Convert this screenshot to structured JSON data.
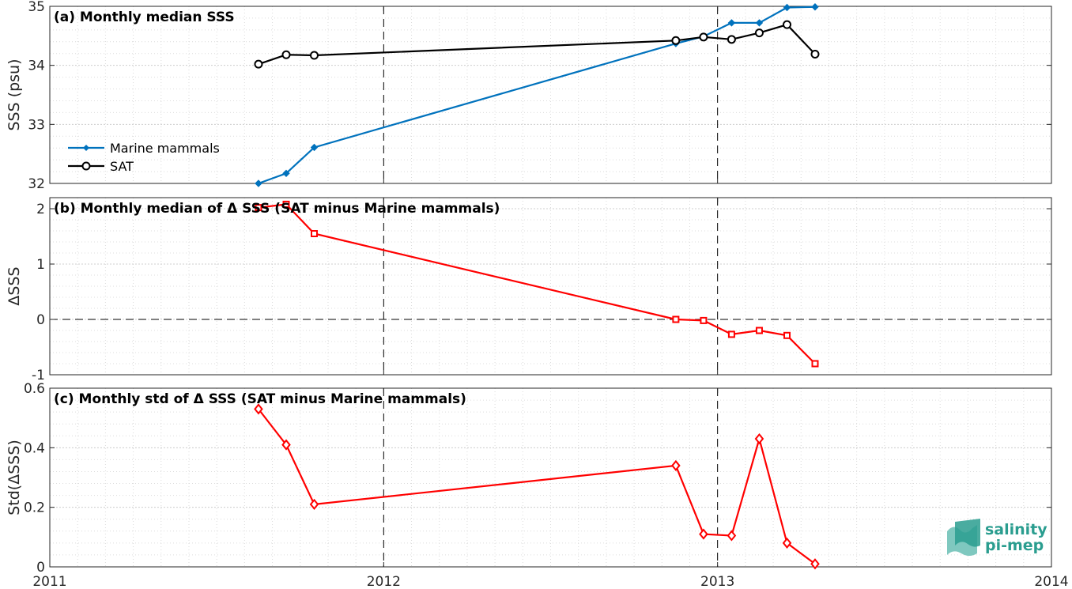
{
  "chart_data": [
    {
      "type": "line",
      "title": "(a) Monthly median SSS",
      "ylabel": "SSS (psu)",
      "xlim": [
        2011,
        2014
      ],
      "ylim": [
        32,
        35
      ],
      "yticks": [
        "32",
        "33",
        "34",
        "35"
      ],
      "series": [
        {
          "name": "Marine mammals",
          "color": "#0072bd",
          "marker": "diamond-filled",
          "x": [
            2011.625,
            2011.708,
            2011.792,
            2012.875,
            2012.958,
            2013.042,
            2013.125,
            2013.208,
            2013.292
          ],
          "values": [
            32.0,
            32.17,
            32.61,
            34.37,
            34.49,
            34.72,
            34.72,
            34.98,
            34.99
          ]
        },
        {
          "name": "SAT",
          "color": "#000000",
          "marker": "circle",
          "x": [
            2011.625,
            2011.708,
            2011.792,
            2012.875,
            2012.958,
            2013.042,
            2013.125,
            2013.208,
            2013.292
          ],
          "values": [
            34.02,
            34.18,
            34.17,
            34.42,
            34.48,
            34.44,
            34.55,
            34.69,
            34.19
          ]
        }
      ],
      "legend_position": "bottom-left"
    },
    {
      "type": "line",
      "title": "(b) Monthly median of Δ SSS (SAT minus Marine mammals)",
      "ylabel": "ΔSSS",
      "xlim": [
        2011,
        2014
      ],
      "ylim": [
        -1,
        2.2
      ],
      "yticks": [
        "-1",
        "0",
        "1",
        "2"
      ],
      "series": [
        {
          "color": "#ff0000",
          "marker": "square",
          "x": [
            2011.625,
            2011.708,
            2011.792,
            2012.875,
            2012.958,
            2013.042,
            2013.125,
            2013.208,
            2013.292
          ],
          "values": [
            2.02,
            2.08,
            1.55,
            0.0,
            -0.02,
            -0.27,
            -0.2,
            -0.29,
            -0.8
          ]
        }
      ],
      "zero_line": true
    },
    {
      "type": "line",
      "title": "(c) Monthly std of Δ SSS (SAT minus Marine mammals)",
      "ylabel": "Std(ΔSSS)",
      "xlim": [
        2011,
        2014
      ],
      "ylim": [
        0,
        0.6
      ],
      "yticks": [
        "0",
        "0.2",
        "0.4",
        "0.6"
      ],
      "xticks": [
        "2011",
        "2012",
        "2013",
        "2014"
      ],
      "series": [
        {
          "color": "#ff0000",
          "marker": "diamond",
          "x": [
            2011.625,
            2011.708,
            2011.792,
            2012.875,
            2012.958,
            2013.042,
            2013.125,
            2013.208,
            2013.292
          ],
          "values": [
            0.53,
            0.41,
            0.21,
            0.34,
            0.11,
            0.105,
            0.43,
            0.08,
            0.01
          ]
        }
      ]
    }
  ],
  "logo": {
    "line1": "salinity",
    "line2": "pi-mep"
  }
}
